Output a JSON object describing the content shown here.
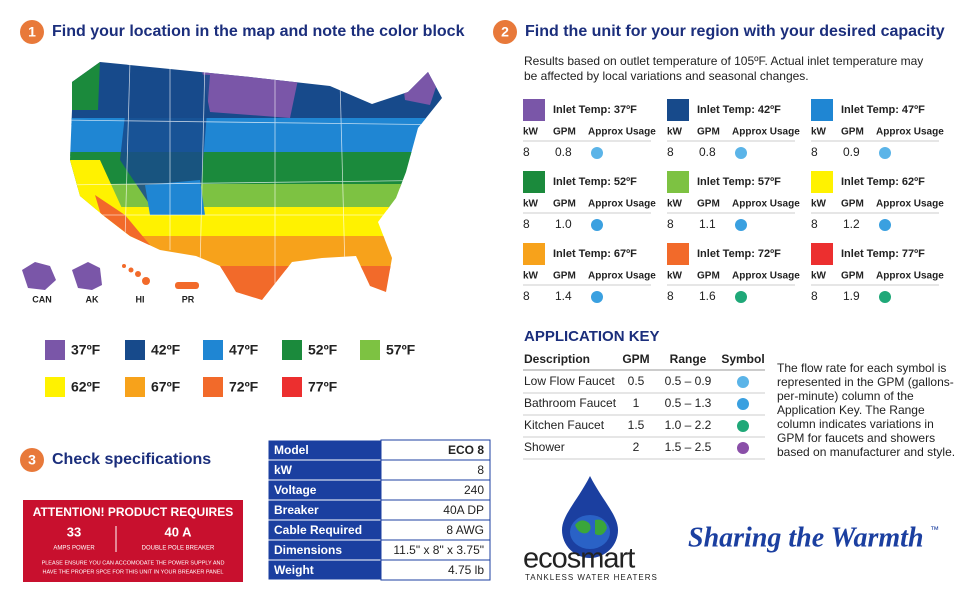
{
  "step1": {
    "number": "1",
    "title": "Find your location in the map and note the color block"
  },
  "map_labels": [
    "CAN",
    "AK",
    "HI",
    "PR"
  ],
  "legend": [
    {
      "label": "37ºF",
      "color": "#7a56a8"
    },
    {
      "label": "42ºF",
      "color": "#174a8b"
    },
    {
      "label": "47ºF",
      "color": "#1f86d3"
    },
    {
      "label": "52ºF",
      "color": "#1b8a3c"
    },
    {
      "label": "57ºF",
      "color": "#7dc242"
    },
    {
      "label": "62ºF",
      "color": "#fff200"
    },
    {
      "label": "67ºF",
      "color": "#f7a21b"
    },
    {
      "label": "72ºF",
      "color": "#f26a2a"
    },
    {
      "label": "77ºF",
      "color": "#ec2f2f"
    }
  ],
  "step2": {
    "number": "2",
    "title": "Find the unit for your region with your desired capacity",
    "note": [
      "Results based on outlet temperature of 105ºF. Actual inlet temperature may",
      "be affected by local variations and seasonal changes."
    ]
  },
  "unit_headers": [
    "kW",
    "GPM",
    "Approx Usage"
  ],
  "units": [
    {
      "label": "Inlet Temp: 37ºF",
      "color": "#7a56a8",
      "kw": "8",
      "gpm": "0.8",
      "icon_color": "#5bb4e8"
    },
    {
      "label": "Inlet Temp: 42ºF",
      "color": "#174a8b",
      "kw": "8",
      "gpm": "0.8",
      "icon_color": "#5bb4e8"
    },
    {
      "label": "Inlet Temp: 47ºF",
      "color": "#1f86d3",
      "kw": "8",
      "gpm": "0.9",
      "icon_color": "#5bb4e8"
    },
    {
      "label": "Inlet Temp: 52ºF",
      "color": "#1b8a3c",
      "kw": "8",
      "gpm": "1.0",
      "icon_color": "#3aa0e0"
    },
    {
      "label": "Inlet Temp: 57ºF",
      "color": "#7dc242",
      "kw": "8",
      "gpm": "1.1",
      "icon_color": "#3aa0e0"
    },
    {
      "label": "Inlet Temp: 62ºF",
      "color": "#fff200",
      "kw": "8",
      "gpm": "1.2",
      "icon_color": "#3aa0e0"
    },
    {
      "label": "Inlet Temp: 67ºF",
      "color": "#f7a21b",
      "kw": "8",
      "gpm": "1.4",
      "icon_color": "#3aa0e0"
    },
    {
      "label": "Inlet Temp: 72ºF",
      "color": "#f26a2a",
      "kw": "8",
      "gpm": "1.6",
      "icon_color": "#1fa878"
    },
    {
      "label": "Inlet Temp: 77ºF",
      "color": "#ec2f2f",
      "kw": "8",
      "gpm": "1.9",
      "icon_color": "#1fa878"
    }
  ],
  "application_key": {
    "title": "APPLICATION KEY",
    "columns": [
      "Description",
      "GPM",
      "Range",
      "Symbol"
    ],
    "rows": [
      {
        "description": "Low Flow Faucet",
        "gpm": "0.5",
        "range": "0.5 – 0.9",
        "icon_color": "#5bb4e8"
      },
      {
        "description": "Bathroom Faucet",
        "gpm": "1",
        "range": "0.5 – 1.3",
        "icon_color": "#3aa0e0"
      },
      {
        "description": "Kitchen Faucet",
        "gpm": "1.5",
        "range": "1.0 – 2.2",
        "icon_color": "#1fa878"
      },
      {
        "description": "Shower",
        "gpm": "2",
        "range": "1.5 – 2.5",
        "icon_color": "#8a4fa8"
      }
    ],
    "note": [
      "The flow rate for each symbol is",
      "represented in the GPM (gallons-",
      "per-minute) column of the",
      "Application Key. The Range",
      "column indicates variations in",
      "GPM for faucets and showers",
      "based on manufacturer and style."
    ]
  },
  "step3": {
    "number": "3",
    "title": "Check specifications"
  },
  "attention": {
    "title": "ATTENTION! PRODUCT REQUIRES",
    "amps": "33",
    "amps_label": "AMPS POWER",
    "breaker": "40 A",
    "breaker_label": "DOUBLE POLE BREAKER",
    "fine_print": [
      "PLEASE ENSURE YOU CAN ACCOMODATE THE POWER SUPPLY AND",
      "HAVE THE PROPER SPCE FOR THIS UNIT IN YOUR BREAKER PANEL"
    ]
  },
  "specs": [
    [
      "Model",
      "ECO 8"
    ],
    [
      "kW",
      "8"
    ],
    [
      "Voltage",
      "240"
    ],
    [
      "Breaker",
      "40A DP"
    ],
    [
      "Cable Required",
      "8 AWG"
    ],
    [
      "Dimensions",
      "11.5\" x 8\" x 3.75\""
    ],
    [
      "Weight",
      "4.75 lb"
    ]
  ],
  "logo": {
    "name": "ecosmart",
    "tagline": "TANKLESS WATER HEATERS"
  },
  "slogan": "Sharing the Warmth",
  "trademark": "™"
}
